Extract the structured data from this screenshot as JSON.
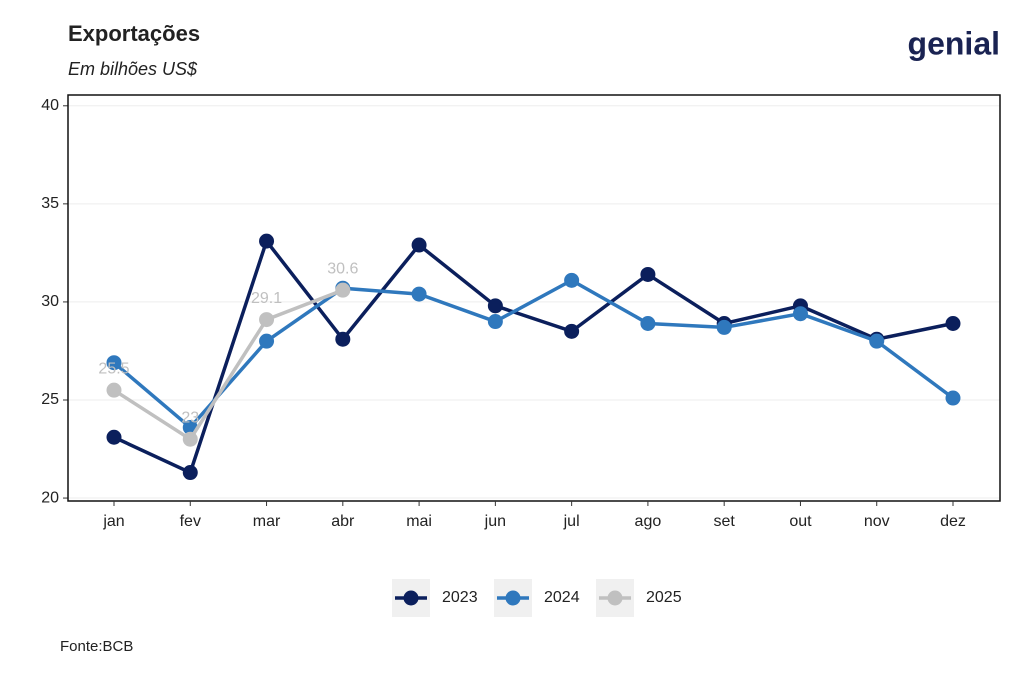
{
  "chart_data": {
    "type": "line",
    "title": "Exportações",
    "subtitle": "Em bilhões US$",
    "logo": "genial",
    "source": "Fonte:BCB",
    "categories": [
      "jan",
      "fev",
      "mar",
      "abr",
      "mai",
      "jun",
      "jul",
      "ago",
      "set",
      "out",
      "nov",
      "dez"
    ],
    "series": [
      {
        "name": "2023",
        "color": "#0b1f5c",
        "values": [
          23.1,
          21.3,
          33.1,
          28.1,
          32.9,
          29.8,
          28.5,
          31.4,
          28.9,
          29.8,
          28.1,
          28.9
        ]
      },
      {
        "name": "2024",
        "color": "#2f78bd",
        "values": [
          26.9,
          23.6,
          28.0,
          30.7,
          30.4,
          29.0,
          31.1,
          28.9,
          28.7,
          29.4,
          28.0,
          25.1
        ]
      },
      {
        "name": "2025",
        "color": "#c0c0c0",
        "values": [
          25.5,
          23,
          29.1,
          30.6,
          null,
          null,
          null,
          null,
          null,
          null,
          null,
          null
        ],
        "data_labels": true
      }
    ],
    "ylim": [
      19.85,
      40.55
    ],
    "yticks": [
      20,
      25,
      30,
      35,
      40
    ],
    "grid": true,
    "legend": "bottom"
  }
}
